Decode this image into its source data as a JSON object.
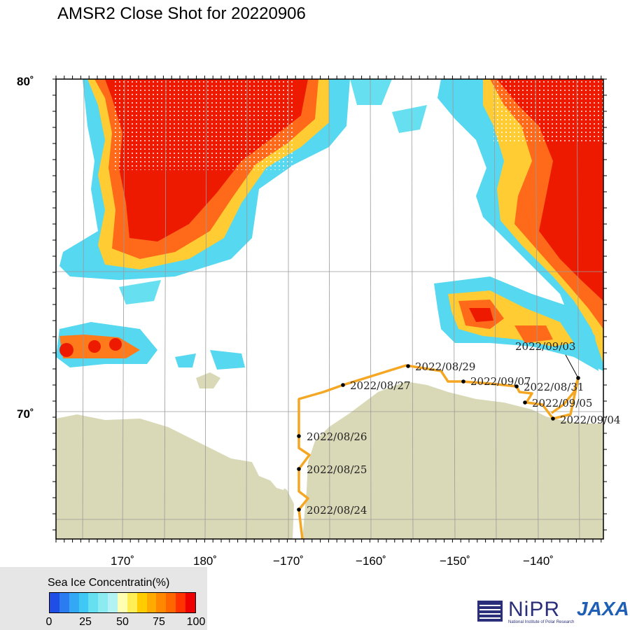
{
  "title": "AMSR2 Close Shot for 20220906",
  "map": {
    "lon_ticks": [
      {
        "value": 170,
        "label": "170˚"
      },
      {
        "value": 180,
        "label": "180˚"
      },
      {
        "value": -170,
        "label": "−170˚"
      },
      {
        "value": -160,
        "label": "−160˚"
      },
      {
        "value": -150,
        "label": "−150˚"
      },
      {
        "value": -140,
        "label": "−140˚"
      }
    ],
    "lat_ticks": [
      {
        "value": 80,
        "label": "80˚"
      },
      {
        "value": 70,
        "label": "70˚"
      }
    ],
    "track_color": "#f5a623",
    "land_color": "#d9d9b8",
    "waypoints": [
      {
        "date": "2022/08/24"
      },
      {
        "date": "2022/08/25"
      },
      {
        "date": "2022/08/26"
      },
      {
        "date": "2022/08/27"
      },
      {
        "date": "2022/08/29"
      },
      {
        "date": "2022/08/31"
      },
      {
        "date": "2022/09/03"
      },
      {
        "date": "2022/09/04"
      },
      {
        "date": "2022/09/05"
      },
      {
        "date": "2022/09/07"
      }
    ]
  },
  "legend": {
    "title": "Sea Ice Concentratin(%)",
    "ticks": [
      "0",
      "25",
      "50",
      "75",
      "100"
    ],
    "colors": [
      "#1f4ee6",
      "#2a7cf0",
      "#33a8f5",
      "#3fc8f5",
      "#66e0f0",
      "#8cebf0",
      "#b3f2f2",
      "#ffffb3",
      "#ffee55",
      "#ffcc00",
      "#ffaa00",
      "#ff8800",
      "#ff6600",
      "#ff3300",
      "#ee0000"
    ]
  },
  "logos": {
    "nipr": "NiPR",
    "nipr_sub": "National Institute of Polar Research",
    "jaxa": "JAXA"
  }
}
